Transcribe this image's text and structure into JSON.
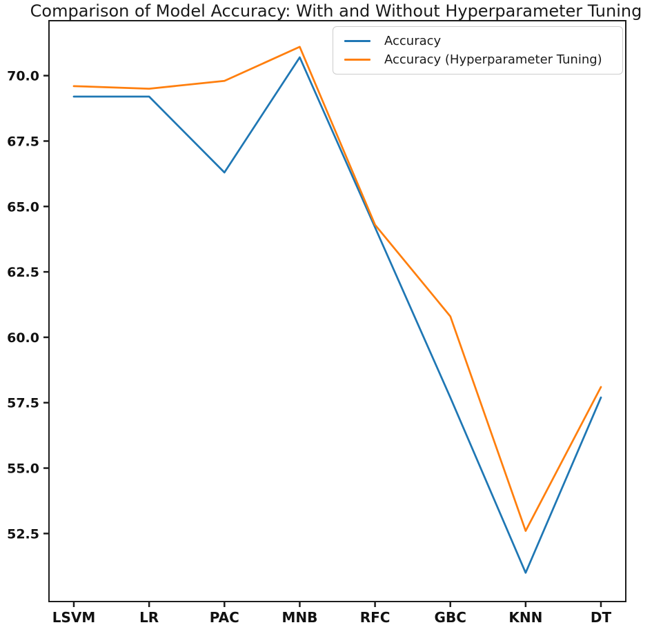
{
  "figure": {
    "title": "Comparison of Model Accuracy: With and Without Hyperparameter Tuning"
  },
  "legend": {
    "items": [
      {
        "label": "Accuracy",
        "color": "#1f77b4"
      },
      {
        "label": "Accuracy (Hyperparameter Tuning)",
        "color": "#ff7f0e"
      }
    ]
  },
  "chart_data": {
    "type": "line",
    "title": "Comparison of Model Accuracy: With and Without Hyperparameter Tuning",
    "categories": [
      "LSVM",
      "LR",
      "PAC",
      "MNB",
      "RFC",
      "GBC",
      "KNN",
      "DT"
    ],
    "series": [
      {
        "name": "Accuracy",
        "color": "#1f77b4",
        "values": [
          69.2,
          69.2,
          66.3,
          70.7,
          64.2,
          57.7,
          51.0,
          57.7
        ]
      },
      {
        "name": "Accuracy (Hyperparameter Tuning)",
        "color": "#ff7f0e",
        "values": [
          69.6,
          69.5,
          69.8,
          71.1,
          64.3,
          60.8,
          52.6,
          58.1
        ]
      }
    ],
    "xlabel": "",
    "ylabel": "",
    "ylim": [
      49.9,
      72.1
    ],
    "yticks": [
      70.0,
      67.5,
      65.0,
      62.5,
      60.0,
      57.5,
      55.0,
      52.5
    ],
    "ytick_labels": [
      "70.0",
      "67.5",
      "65.0",
      "62.5",
      "60.0",
      "57.5",
      "55.0",
      "52.5"
    ],
    "legend_position": "upper right",
    "grid": false
  }
}
